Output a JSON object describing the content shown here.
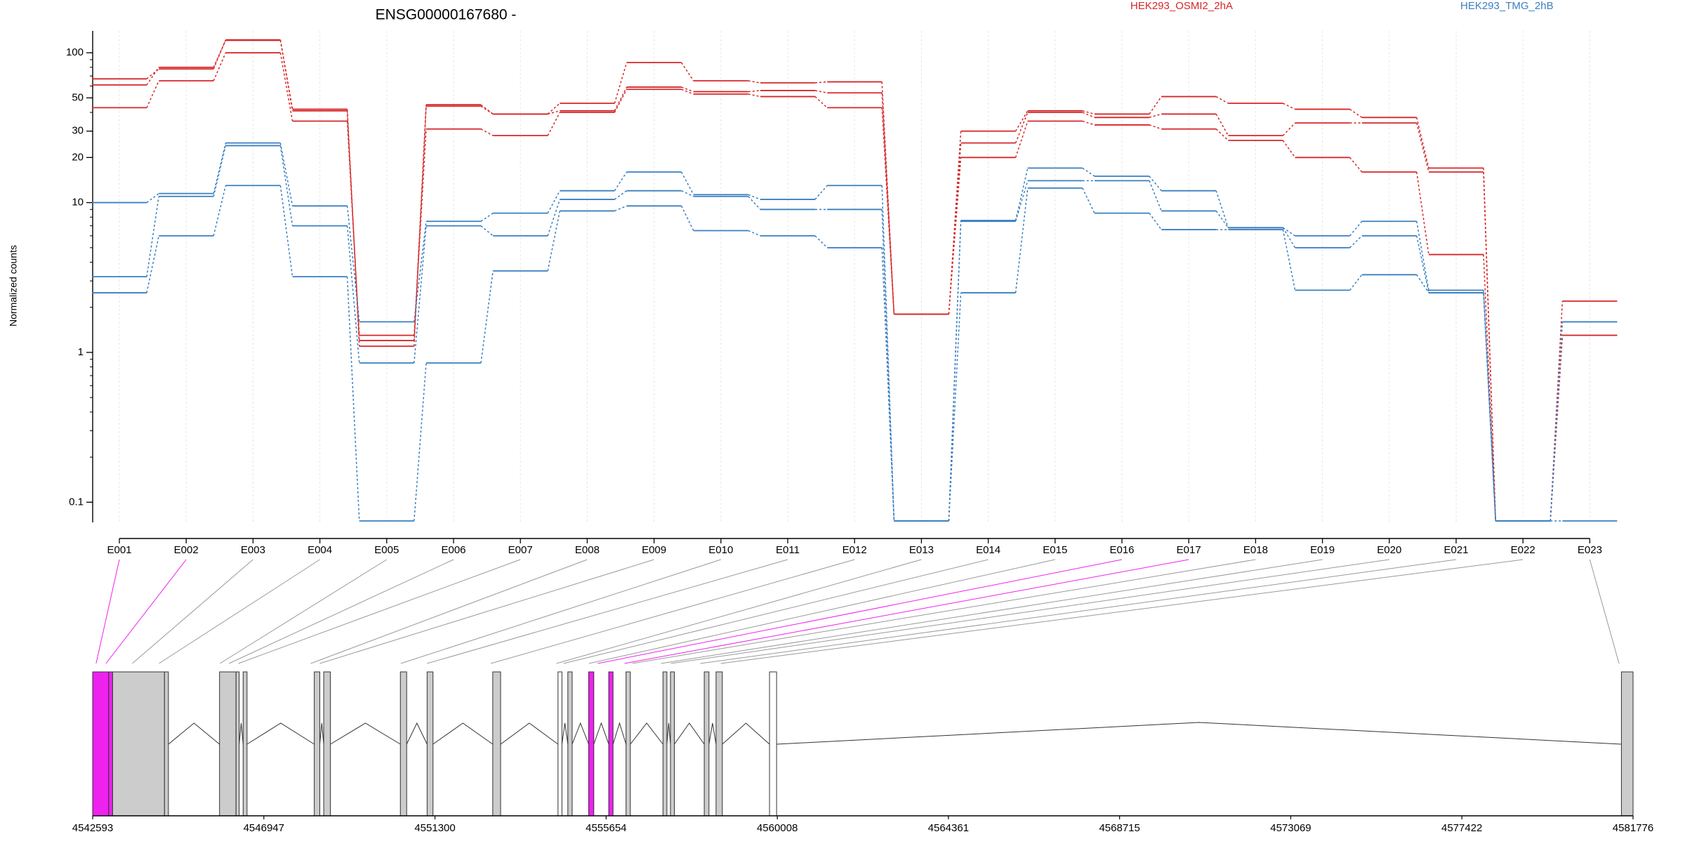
{
  "chart_data": {
    "type": "line",
    "title": "ENSG00000167680 -",
    "xlabel": "",
    "ylabel": "Normalized counts",
    "yscale": "log",
    "ylim": [
      0.075,
      140
    ],
    "yticks": [
      "100",
      "50",
      "30",
      "20",
      "10",
      "1",
      "0.1"
    ],
    "ytick_values": [
      100,
      50,
      30,
      20,
      10,
      1,
      0.1
    ],
    "legend": [
      {
        "name": "HEK293_OSMI2_2hA",
        "color": "#d62728"
      },
      {
        "name": "HEK293_TMG_2hB",
        "color": "#3a7fc1"
      }
    ],
    "legend_placement": "top-right",
    "grid": "vertical dotted at exon centers",
    "categories": [
      "E001",
      "E002",
      "E003",
      "E004",
      "E005",
      "E006",
      "E007",
      "E008",
      "E009",
      "E010",
      "E011",
      "E012",
      "E013",
      "E014",
      "E015",
      "E016",
      "E017",
      "E018",
      "E019",
      "E020",
      "E021",
      "E022",
      "E023"
    ],
    "series": [
      {
        "group": "HEK293_OSMI2_2hA",
        "color": "#d62728",
        "values": [
          67,
          78,
          122,
          41,
          1.2,
          44,
          39,
          46,
          86,
          65,
          63,
          64,
          1.8,
          30,
          41,
          39,
          51,
          46,
          42,
          37,
          17,
          0.075,
          2.2
        ]
      },
      {
        "group": "HEK293_OSMI2_2hA",
        "color": "#d62728",
        "values": [
          61,
          80,
          121,
          42,
          1.1,
          45,
          39,
          41,
          59,
          55,
          56,
          54,
          1.8,
          25,
          40,
          37,
          39,
          28,
          34,
          34,
          16,
          0.075,
          1.3
        ]
      },
      {
        "group": "HEK293_OSMI2_2hA",
        "color": "#d62728",
        "values": [
          43,
          65,
          100,
          35,
          1.3,
          31,
          28,
          40,
          57,
          53,
          51,
          43,
          1.8,
          20,
          35,
          33,
          31,
          26,
          20,
          16,
          4.5,
          0.075,
          1.3
        ]
      },
      {
        "group": "HEK293_TMG_2hB",
        "color": "#3a7fc1",
        "values": [
          10,
          11.5,
          25,
          9.5,
          1.6,
          7.5,
          8.5,
          12,
          16,
          11.3,
          10.5,
          13,
          0.075,
          7.6,
          17,
          15,
          12,
          6.8,
          6,
          7.5,
          2.6,
          0.075,
          1.6
        ]
      },
      {
        "group": "HEK293_TMG_2hB",
        "color": "#3a7fc1",
        "values": [
          3.2,
          11,
          24,
          7,
          0.85,
          7,
          6,
          10.5,
          12,
          11,
          9,
          9,
          0.075,
          7.5,
          14,
          14,
          8.8,
          6.8,
          5,
          6,
          2.5,
          0.075,
          1.6
        ]
      },
      {
        "group": "HEK293_TMG_2hB",
        "color": "#3a7fc1",
        "values": [
          2.5,
          6,
          13,
          3.2,
          0.075,
          0.85,
          3.5,
          8.8,
          9.5,
          6.5,
          6,
          5,
          0.075,
          2.5,
          12.5,
          8.5,
          6.6,
          6.6,
          2.6,
          3.3,
          2.5,
          0.075,
          0.075
        ]
      }
    ],
    "gene_model": {
      "axis_ticks": [
        "4542593",
        "4546947",
        "4551300",
        "4555654",
        "4560008",
        "4564361",
        "4568715",
        "4573069",
        "4577422",
        "4581776"
      ],
      "axis_tick_values": [
        4542593,
        4546947,
        4551300,
        4555654,
        4560008,
        4564361,
        4568715,
        4573069,
        4577422,
        4581776
      ],
      "highlight_color": "#ee22ee",
      "exons": [
        {
          "start": 4542593,
          "end": 4543000,
          "fill": "#ee22ee"
        },
        {
          "start": 4543000,
          "end": 4543100,
          "fill": "#ee22ee"
        },
        {
          "start": 4543100,
          "end": 4544420,
          "fill": "#cccccc"
        },
        {
          "start": 4544420,
          "end": 4544520,
          "fill": "#cccccc"
        },
        {
          "start": 4545820,
          "end": 4546240,
          "fill": "#cccccc"
        },
        {
          "start": 4546240,
          "end": 4546320,
          "fill": "#cccccc"
        },
        {
          "start": 4546420,
          "end": 4546520,
          "fill": "#cccccc"
        },
        {
          "start": 4548230,
          "end": 4548370,
          "fill": "#cccccc"
        },
        {
          "start": 4548470,
          "end": 4548640,
          "fill": "#cccccc"
        },
        {
          "start": 4550420,
          "end": 4550580,
          "fill": "#cccccc"
        },
        {
          "start": 4551100,
          "end": 4551250,
          "fill": "#cccccc"
        },
        {
          "start": 4552770,
          "end": 4552970,
          "fill": "#cccccc"
        },
        {
          "start": 4554430,
          "end": 4554530,
          "fill": "#ffffff"
        },
        {
          "start": 4554680,
          "end": 4554790,
          "fill": "#cccccc"
        },
        {
          "start": 4555210,
          "end": 4555340,
          "fill": "#ee22ee"
        },
        {
          "start": 4555720,
          "end": 4555830,
          "fill": "#ee22ee"
        },
        {
          "start": 4556160,
          "end": 4556270,
          "fill": "#cccccc"
        },
        {
          "start": 4557100,
          "end": 4557200,
          "fill": "#cccccc"
        },
        {
          "start": 4557290,
          "end": 4557390,
          "fill": "#cccccc"
        },
        {
          "start": 4558150,
          "end": 4558270,
          "fill": "#cccccc"
        },
        {
          "start": 4558450,
          "end": 4558610,
          "fill": "#cccccc"
        },
        {
          "start": 4559810,
          "end": 4559990,
          "fill": "#ffffff"
        },
        {
          "start": 4581480,
          "end": 4581776,
          "fill": "#cccccc"
        }
      ],
      "exon_bin_positions": [
        4542680,
        4542930,
        4543600,
        4544280,
        4545830,
        4546060,
        4546300,
        4548140,
        4548370,
        4550430,
        4551100,
        4552720,
        4554390,
        4554570,
        4555220,
        4555440,
        4556120,
        4556320,
        4557050,
        4557300,
        4558050,
        4558570,
        4581420
      ],
      "highlighted_bins": [
        0,
        1,
        15,
        16
      ]
    }
  }
}
